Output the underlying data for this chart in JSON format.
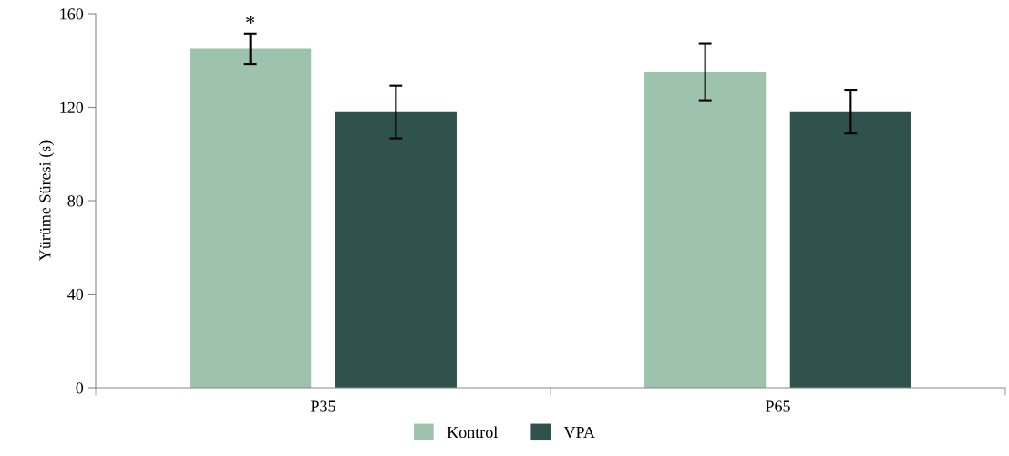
{
  "chart_data": {
    "type": "bar",
    "ylabel": "Yürüme Süresi (s)",
    "categories": [
      "P35",
      "P65"
    ],
    "series": [
      {
        "name": "Kontrol",
        "color": "#9dc3ac",
        "values": [
          145,
          135
        ],
        "errors": [
          6.5,
          12.3
        ]
      },
      {
        "name": "VPA",
        "color": "#2f524f",
        "values": [
          118,
          118
        ],
        "errors": [
          11.3,
          9.2
        ]
      }
    ],
    "ylim": [
      0,
      160
    ],
    "yticks": [
      0,
      40,
      80,
      120,
      160
    ],
    "grid": false,
    "legend": "bottom",
    "annotations": [
      "*"
    ]
  }
}
